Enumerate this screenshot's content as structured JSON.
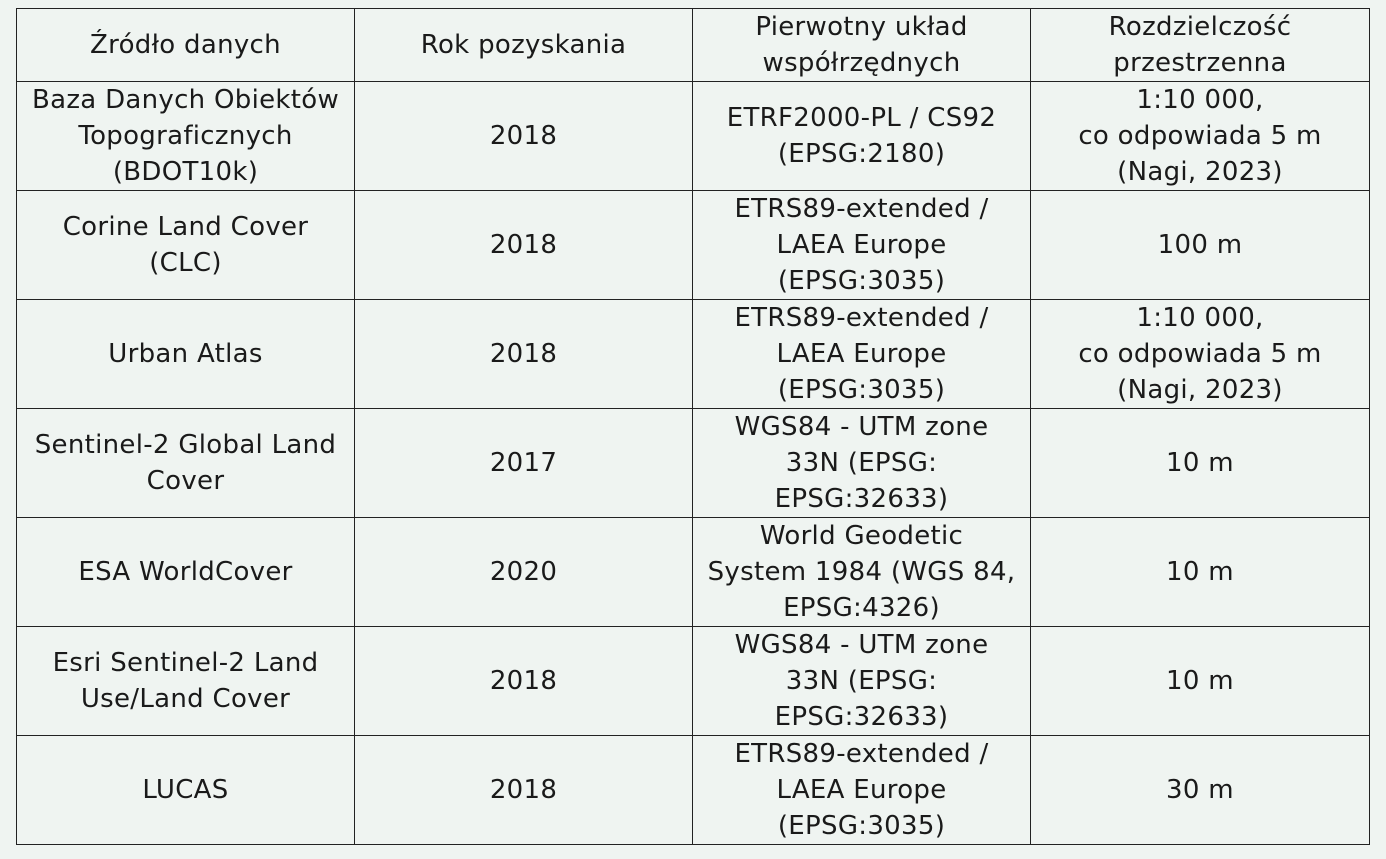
{
  "table": {
    "headers": [
      "Źródło danych",
      "Rok pozyskania",
      "Pierwotny układ\nwspółrzędnych",
      "Rozdzielczość\nprzestrzenna"
    ],
    "rows": [
      [
        "Baza Danych Obiektów\nTopograficznych\n(BDOT10k)",
        "2018",
        "ETRF2000-PL / CS92\n(EPSG:2180)",
        "1:10 000,\nco odpowiada 5 m\n(Nagi, 2023)"
      ],
      [
        "Corine Land Cover\n(CLC)",
        "2018",
        "ETRS89-extended /\nLAEA Europe\n(EPSG:3035)",
        "100 m"
      ],
      [
        "Urban Atlas",
        "2018",
        "ETRS89-extended /\nLAEA Europe\n(EPSG:3035)",
        "1:10 000,\nco odpowiada 5 m\n(Nagi, 2023)"
      ],
      [
        "Sentinel-2 Global Land\nCover",
        "2017",
        "WGS84 - UTM zone\n33N (EPSG:\nEPSG:32633)",
        "10 m"
      ],
      [
        "ESA WorldCover",
        "2020",
        "World Geodetic\nSystem 1984 (WGS 84,\nEPSG:4326)",
        "10 m"
      ],
      [
        "Esri Sentinel-2 Land\nUse/Land Cover",
        "2018",
        "WGS84 - UTM zone\n33N (EPSG:\nEPSG:32633)",
        "10 m"
      ],
      [
        "LUCAS",
        "2018",
        "ETRS89-extended /\nLAEA Europe\n(EPSG:3035)",
        "30 m"
      ]
    ]
  }
}
